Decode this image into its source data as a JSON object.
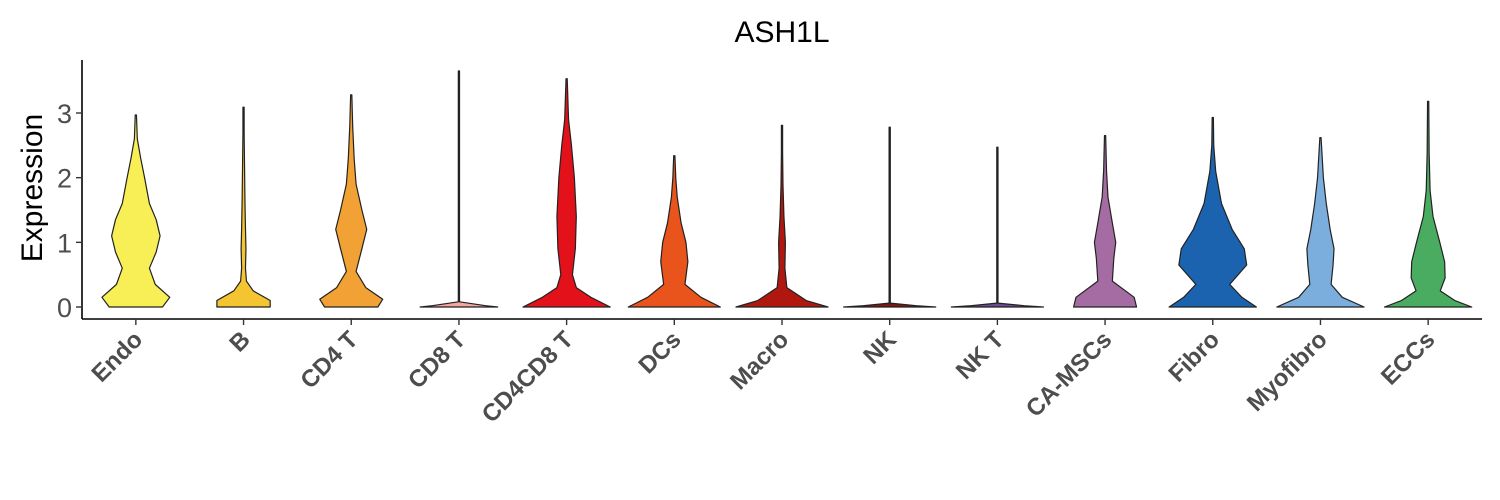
{
  "chart_data": {
    "type": "violin",
    "title": "ASH1L",
    "xlabel": "",
    "ylabel": "Expression",
    "ylim": [
      -0.15,
      3.85
    ],
    "yticks": [
      0,
      1,
      2,
      3
    ],
    "grid": false,
    "legend": "none",
    "categories": [
      "Endo",
      "B",
      "CD4 T",
      "CD8 T",
      "CD4CD8 T",
      "DCs",
      "Macro",
      "NK",
      "NK T",
      "CA-MSCs",
      "Fibro",
      "Myofibro",
      "ECCs"
    ],
    "colors": [
      "#F7EF55",
      "#F5C431",
      "#F2A234",
      "#F4A6A0",
      "#E3111A",
      "#E8541C",
      "#B0180F",
      "#7C1A12",
      "#6C4B8F",
      "#A46CA2",
      "#1C63AF",
      "#7BAEDD",
      "#4AAC60"
    ],
    "max_values": [
      2.97,
      3.09,
      3.28,
      3.65,
      3.53,
      2.34,
      2.81,
      2.78,
      2.47,
      2.65,
      2.93,
      2.62,
      3.18
    ],
    "density_profiles": [
      [
        [
          0.0,
          0.55
        ],
        [
          0.15,
          0.7
        ],
        [
          0.35,
          0.4
        ],
        [
          0.6,
          0.28
        ],
        [
          0.85,
          0.42
        ],
        [
          1.1,
          0.5
        ],
        [
          1.35,
          0.42
        ],
        [
          1.6,
          0.28
        ],
        [
          2.0,
          0.18
        ],
        [
          2.3,
          0.1
        ],
        [
          2.6,
          0.03
        ],
        [
          2.97,
          0
        ]
      ],
      [
        [
          0.0,
          0.55
        ],
        [
          0.1,
          0.55
        ],
        [
          0.25,
          0.2
        ],
        [
          0.4,
          0.06
        ],
        [
          0.6,
          0.04
        ],
        [
          0.9,
          0.05
        ],
        [
          1.2,
          0.04
        ],
        [
          1.6,
          0.03
        ],
        [
          2.2,
          0.02
        ],
        [
          2.7,
          0.01
        ],
        [
          3.09,
          0
        ]
      ],
      [
        [
          0.0,
          0.55
        ],
        [
          0.12,
          0.65
        ],
        [
          0.3,
          0.3
        ],
        [
          0.55,
          0.1
        ],
        [
          0.9,
          0.22
        ],
        [
          1.2,
          0.32
        ],
        [
          1.5,
          0.22
        ],
        [
          1.9,
          0.1
        ],
        [
          2.3,
          0.06
        ],
        [
          2.8,
          0.03
        ],
        [
          3.28,
          0
        ]
      ],
      [
        [
          0.0,
          0.8
        ],
        [
          0.02,
          0.55
        ],
        [
          0.08,
          0
        ],
        [
          0.5,
          0
        ],
        [
          1.5,
          0
        ],
        [
          3.65,
          0
        ]
      ],
      [
        [
          0.0,
          0.9
        ],
        [
          0.15,
          0.5
        ],
        [
          0.3,
          0.2
        ],
        [
          0.5,
          0.12
        ],
        [
          0.9,
          0.18
        ],
        [
          1.4,
          0.2
        ],
        [
          2.0,
          0.16
        ],
        [
          2.5,
          0.1
        ],
        [
          2.9,
          0.04
        ],
        [
          3.53,
          0
        ]
      ],
      [
        [
          0.0,
          0.95
        ],
        [
          0.15,
          0.55
        ],
        [
          0.35,
          0.22
        ],
        [
          0.7,
          0.28
        ],
        [
          1.0,
          0.24
        ],
        [
          1.3,
          0.14
        ],
        [
          1.7,
          0.06
        ],
        [
          2.0,
          0.03
        ],
        [
          2.34,
          0
        ]
      ],
      [
        [
          0.0,
          0.95
        ],
        [
          0.1,
          0.5
        ],
        [
          0.3,
          0.1
        ],
        [
          0.6,
          0.06
        ],
        [
          1.0,
          0.07
        ],
        [
          1.4,
          0.04
        ],
        [
          1.9,
          0.02
        ],
        [
          2.4,
          0.01
        ],
        [
          2.81,
          0
        ]
      ],
      [
        [
          0.0,
          0.95
        ],
        [
          0.02,
          0.55
        ],
        [
          0.06,
          0
        ],
        [
          1.0,
          0
        ],
        [
          2.78,
          0
        ]
      ],
      [
        [
          0.0,
          0.95
        ],
        [
          0.02,
          0.55
        ],
        [
          0.06,
          0
        ],
        [
          1.0,
          0
        ],
        [
          1.6,
          0.01
        ],
        [
          2.47,
          0
        ]
      ],
      [
        [
          0.0,
          0.65
        ],
        [
          0.15,
          0.6
        ],
        [
          0.4,
          0.15
        ],
        [
          0.75,
          0.18
        ],
        [
          1.0,
          0.22
        ],
        [
          1.3,
          0.15
        ],
        [
          1.7,
          0.06
        ],
        [
          2.1,
          0.03
        ],
        [
          2.65,
          0
        ]
      ],
      [
        [
          0.0,
          0.9
        ],
        [
          0.15,
          0.6
        ],
        [
          0.35,
          0.35
        ],
        [
          0.65,
          0.7
        ],
        [
          0.9,
          0.65
        ],
        [
          1.2,
          0.4
        ],
        [
          1.6,
          0.18
        ],
        [
          2.1,
          0.06
        ],
        [
          2.5,
          0.02
        ],
        [
          2.93,
          0
        ]
      ],
      [
        [
          0.0,
          0.9
        ],
        [
          0.15,
          0.45
        ],
        [
          0.35,
          0.22
        ],
        [
          0.65,
          0.26
        ],
        [
          0.9,
          0.28
        ],
        [
          1.2,
          0.2
        ],
        [
          1.6,
          0.12
        ],
        [
          2.0,
          0.06
        ],
        [
          2.62,
          0
        ]
      ],
      [
        [
          0.0,
          0.9
        ],
        [
          0.1,
          0.55
        ],
        [
          0.25,
          0.25
        ],
        [
          0.45,
          0.35
        ],
        [
          0.7,
          0.34
        ],
        [
          1.0,
          0.24
        ],
        [
          1.4,
          0.1
        ],
        [
          1.8,
          0.04
        ],
        [
          2.4,
          0.02
        ],
        [
          3.18,
          0
        ]
      ]
    ]
  }
}
